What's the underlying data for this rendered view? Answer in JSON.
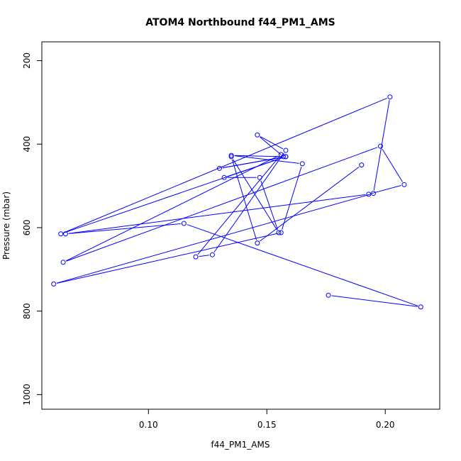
{
  "chart_data": {
    "type": "line",
    "title": "ATOM4 Northbound f44_PM1_AMS",
    "xlabel": "f44_PM1_AMS",
    "ylabel": "Pressure (mbar)",
    "xlim": [
      0.055,
      0.223
    ],
    "ylim": [
      1035,
      155
    ],
    "y_reversed": true,
    "xticks": [
      0.1,
      0.15,
      0.2
    ],
    "xtick_labels": [
      "0.10",
      "0.15",
      "0.20"
    ],
    "yticks": [
      200,
      400,
      600,
      800,
      1000
    ],
    "ytick_labels": [
      "200",
      "400",
      "600",
      "800",
      "1000"
    ],
    "grid": false,
    "legend": "none",
    "line_color": "#0000ff",
    "marker": "open-circle",
    "series": [
      {
        "x": [
          0.176,
          0.215,
          0.115,
          0.065,
          0.193,
          0.208,
          0.198,
          0.064,
          0.156,
          0.12,
          0.127,
          0.158,
          0.146,
          0.157,
          0.135,
          0.165,
          0.156,
          0.06,
          0.195,
          0.202,
          0.063,
          0.158,
          0.13,
          0.158,
          0.132,
          0.147,
          0.155,
          0.135,
          0.146,
          0.19
        ],
        "y": [
          762,
          790,
          590,
          615,
          520,
          497,
          405,
          683,
          425,
          670,
          665,
          415,
          378,
          430,
          427,
          447,
          612,
          735,
          518,
          287,
          615,
          430,
          458,
          430,
          480,
          480,
          612,
          430,
          637,
          450
        ]
      }
    ]
  }
}
